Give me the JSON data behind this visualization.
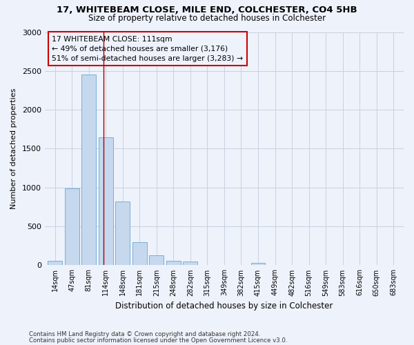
{
  "title1": "17, WHITEBEAM CLOSE, MILE END, COLCHESTER, CO4 5HB",
  "title2": "Size of property relative to detached houses in Colchester",
  "xlabel": "Distribution of detached houses by size in Colchester",
  "ylabel": "Number of detached properties",
  "footnote1": "Contains HM Land Registry data © Crown copyright and database right 2024.",
  "footnote2": "Contains public sector information licensed under the Open Government Licence v3.0.",
  "bar_labels": [
    "14sqm",
    "47sqm",
    "81sqm",
    "114sqm",
    "148sqm",
    "181sqm",
    "215sqm",
    "248sqm",
    "282sqm",
    "315sqm",
    "349sqm",
    "382sqm",
    "415sqm",
    "449sqm",
    "482sqm",
    "516sqm",
    "549sqm",
    "583sqm",
    "616sqm",
    "650sqm",
    "683sqm"
  ],
  "bar_values": [
    60,
    990,
    2450,
    1650,
    820,
    300,
    130,
    55,
    45,
    0,
    0,
    0,
    30,
    0,
    0,
    0,
    0,
    0,
    0,
    0,
    0
  ],
  "bar_color": "#c5d8ee",
  "bar_edge_color": "#7aafd4",
  "ylim": [
    0,
    3000
  ],
  "yticks": [
    0,
    500,
    1000,
    1500,
    2000,
    2500,
    3000
  ],
  "vline_x": 2.85,
  "vline_color": "#aa0000",
  "annotation_text1": "17 WHITEBEAM CLOSE: 111sqm",
  "annotation_text2": "← 49% of detached houses are smaller (3,176)",
  "annotation_text3": "51% of semi-detached houses are larger (3,283) →",
  "box_edge_color": "#cc0000",
  "background_color": "#eef2fb",
  "grid_color": "#c8d0e0"
}
